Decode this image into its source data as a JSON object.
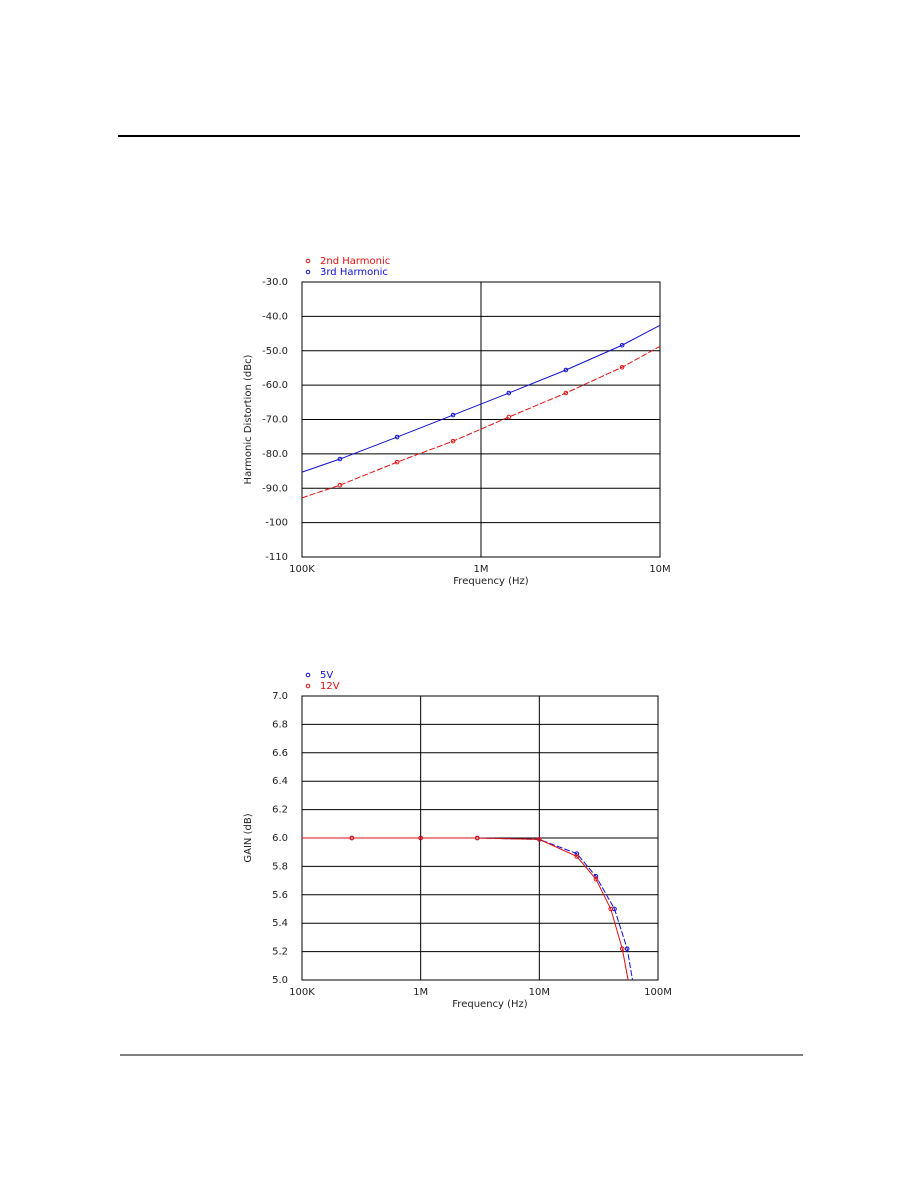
{
  "chart_data": [
    {
      "type": "line",
      "xscale": "log",
      "grid": true,
      "legend": "top-left",
      "x_label": "Frequency (Hz)",
      "y_label": "Harmonic Distortion (dBc)",
      "xlim": [
        100000,
        10000000
      ],
      "xticks": [
        {
          "value": 100000,
          "label": "100K"
        },
        {
          "value": 1000000,
          "label": "1M"
        },
        {
          "value": 10000000,
          "label": "10M"
        }
      ],
      "ylim": [
        -110,
        -30
      ],
      "yticks": [
        {
          "value": -30,
          "label": "-30.0"
        },
        {
          "value": -40,
          "label": "-40.0"
        },
        {
          "value": -50,
          "label": "-50.0"
        },
        {
          "value": -60,
          "label": "-60.0"
        },
        {
          "value": -70,
          "label": "-70.0"
        },
        {
          "value": -80,
          "label": "-80.0"
        },
        {
          "value": -90,
          "label": "-90.0"
        },
        -100,
        -110
      ],
      "series": [
        {
          "name": "2nd Harmonic",
          "color": "#e01010",
          "x": [
            100000,
            163000,
            340000,
            698000,
            1430000,
            2980000,
            6140000,
            10000000
          ],
          "values": [
            -92.8,
            -89.1,
            -82.4,
            -76.3,
            -69.3,
            -62.3,
            -54.8,
            -48.7
          ]
        },
        {
          "name": "3rd Harmonic",
          "color": "#1010d0",
          "x": [
            100000,
            163000,
            340000,
            698000,
            1430000,
            2980000,
            6140000,
            10000000
          ],
          "values": [
            -85.3,
            -81.5,
            -75.1,
            -68.7,
            -62.3,
            -55.6,
            -48.4,
            -42.6
          ]
        }
      ]
    },
    {
      "type": "line",
      "xscale": "log",
      "grid": true,
      "legend": "top-left",
      "x_label": "Frequency (Hz)",
      "y_label": "GAIN (dB)",
      "xlim": [
        100000,
        100000000
      ],
      "xticks": [
        {
          "value": 100000,
          "label": "100K"
        },
        {
          "value": 1000000,
          "label": "1M"
        },
        {
          "value": 10000000,
          "label": "10M"
        },
        {
          "value": 100000000,
          "label": "100M"
        }
      ],
      "ylim": [
        5,
        7
      ],
      "yticks": [
        {
          "value": 7,
          "label": "7.0"
        },
        6.8,
        6.6,
        6.4,
        6.2,
        {
          "value": 6,
          "label": "6.0"
        },
        5.8,
        5.6,
        5.4,
        5.2,
        {
          "value": 5,
          "label": "5.0"
        }
      ],
      "series": [
        {
          "name": "5V",
          "color": "#1010d0",
          "x": [
            100000,
            263000,
            1000000,
            3000000,
            10000000,
            20700000,
            30000000,
            43000000,
            55000000,
            61000000
          ],
          "values": [
            6.0,
            6.0,
            6.0,
            6.0,
            5.99,
            5.89,
            5.73,
            5.5,
            5.22,
            5.0
          ]
        },
        {
          "name": "12V",
          "color": "#e01010",
          "x": [
            100000,
            263000,
            1000000,
            3000000,
            10000000,
            20700000,
            30000000,
            40000000,
            50000000,
            56000000
          ],
          "values": [
            6.0,
            6.0,
            6.0,
            6.0,
            5.99,
            5.87,
            5.71,
            5.5,
            5.22,
            5.0
          ]
        }
      ]
    }
  ]
}
